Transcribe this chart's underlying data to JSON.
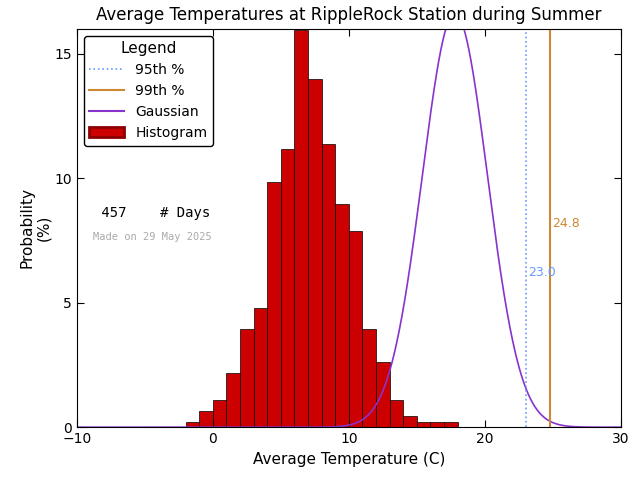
{
  "title": "Average Temperatures at RippleRock Station during Summer",
  "xlabel": "Average Temperature (C)",
  "ylabel": "Probability\n(%)",
  "xlim": [
    -10,
    30
  ],
  "ylim": [
    0,
    16
  ],
  "mean": 17.8,
  "std": 2.4,
  "skew_adjust": true,
  "n_days": 457,
  "bin_width": 1.0,
  "percentile_95": 23.0,
  "percentile_99": 24.8,
  "percentile_95_color": "#6699ff",
  "percentile_99_color": "#cc8833",
  "gaussian_color": "#8833cc",
  "histogram_color": "#cc0000",
  "histogram_edge_color": "#000000",
  "made_on_text": "Made on 29 May 2025",
  "yticks": [
    0,
    5,
    10,
    15
  ],
  "xticks": [
    -10,
    0,
    10,
    20,
    30
  ],
  "background_color": "#ffffff",
  "title_fontsize": 12,
  "axis_fontsize": 11,
  "legend_fontsize": 10,
  "bar_heights": [
    0.0,
    0.0,
    0.0,
    0.0,
    0.0,
    0.0,
    0.0,
    0.0,
    0.22,
    0.66,
    1.09,
    2.18,
    3.93,
    4.8,
    9.85,
    11.16,
    15.97,
    14.0,
    11.38,
    8.97,
    7.86,
    3.93,
    2.62,
    1.09,
    0.44,
    0.22,
    0.22,
    0.22,
    0.0,
    0.0,
    0.0,
    0.0,
    0.0,
    0.0,
    0.0,
    0.0,
    0.0,
    0.0,
    0.0,
    0.0
  ],
  "bin_start": -10
}
